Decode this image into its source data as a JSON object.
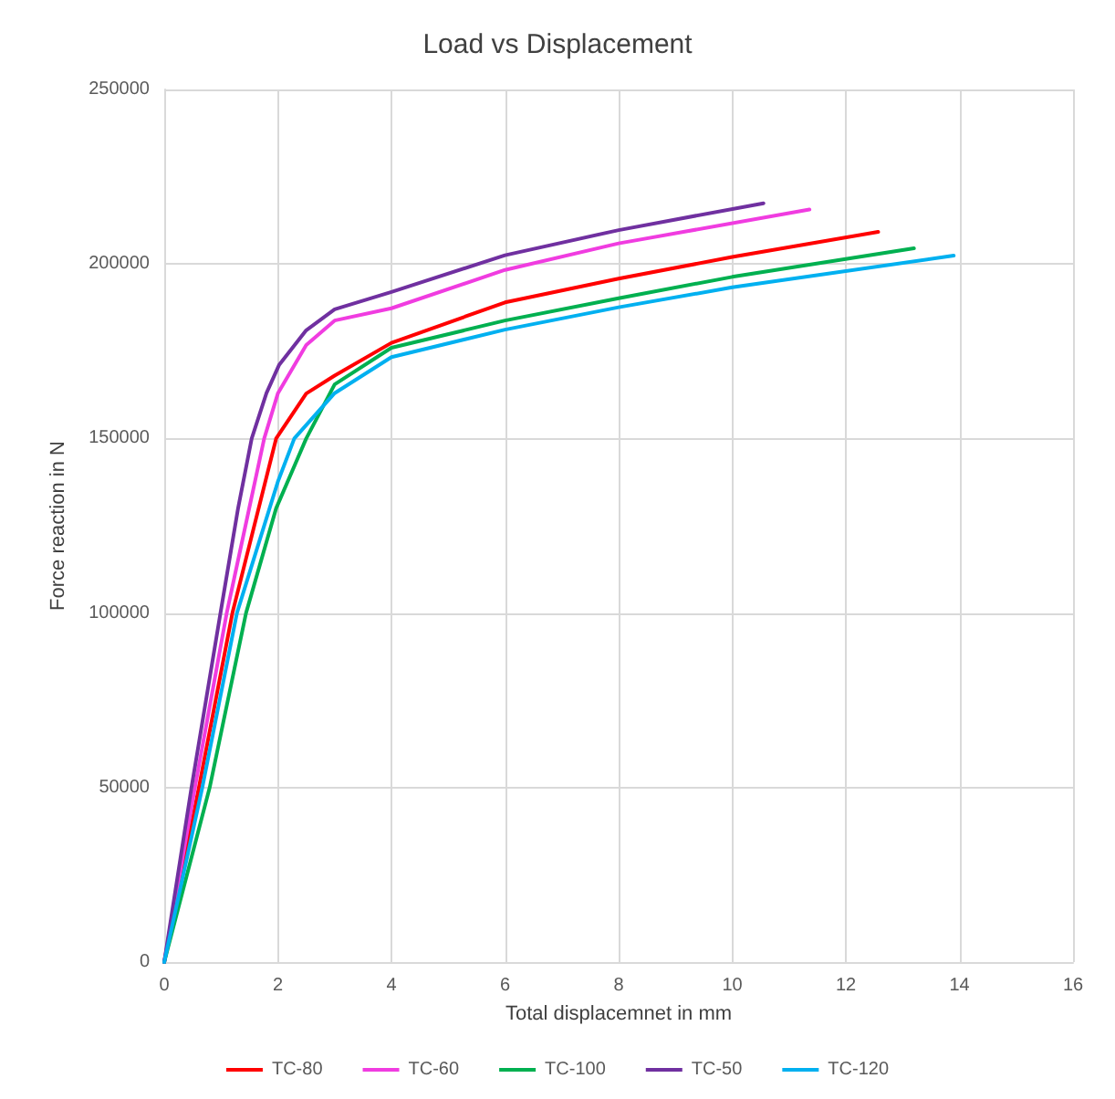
{
  "chart_data": {
    "type": "line",
    "title": "Load vs Displacement",
    "xlabel": "Total displacemnet in mm",
    "ylabel": "Force reaction in N",
    "xlim": [
      0,
      16
    ],
    "xticks": [
      0,
      2,
      4,
      6,
      8,
      10,
      12,
      14,
      16
    ],
    "ylim": [
      0,
      250000
    ],
    "yticks": [
      0,
      50000,
      100000,
      150000,
      200000,
      250000
    ],
    "grid": true,
    "legend": "bottom",
    "marker": "none",
    "line_style": "solid",
    "series": [
      {
        "name": "TC-80",
        "color": "#ff0000",
        "x": [
          0,
          0.61,
          1.2,
          1.97,
          2.5,
          3,
          4,
          6,
          8,
          10,
          12.57
        ],
        "values": [
          0,
          50000,
          100000,
          150000,
          162900,
          168000,
          177400,
          189000,
          195800,
          202000,
          209200
        ]
      },
      {
        "name": "TC-60",
        "color": "#f03ce0",
        "x": [
          0,
          0.54,
          1.1,
          1.76,
          2,
          2.5,
          3,
          4,
          6,
          8,
          11.36
        ],
        "values": [
          0,
          50000,
          100000,
          150000,
          162900,
          176800,
          183800,
          187300,
          198300,
          205900,
          215600
        ]
      },
      {
        "name": "TC-100",
        "color": "#00b050",
        "x": [
          0,
          0.8,
          1.44,
          1.97,
          2.5,
          3,
          4,
          6,
          8,
          10,
          13.2
        ],
        "values": [
          0,
          50000,
          100000,
          130000,
          150000,
          165500,
          176000,
          183800,
          190200,
          196300,
          204500
        ]
      },
      {
        "name": "TC-50",
        "color": "#7030a0",
        "x": [
          0,
          0.48,
          0.99,
          1.3,
          1.54,
          1.8,
          2.02,
          2.5,
          3,
          4,
          6,
          8,
          10.55
        ],
        "values": [
          0,
          50000,
          100000,
          130000,
          150000,
          163000,
          171000,
          181000,
          187000,
          192000,
          202500,
          209700,
          217400
        ]
      },
      {
        "name": "TC-120",
        "color": "#00b0f0",
        "x": [
          0,
          0.67,
          1.28,
          2,
          2.29,
          3,
          4,
          6,
          8,
          10,
          13.9
        ],
        "values": [
          0,
          50000,
          100000,
          137600,
          150000,
          163000,
          173300,
          181200,
          187600,
          193300,
          202400
        ]
      }
    ]
  }
}
